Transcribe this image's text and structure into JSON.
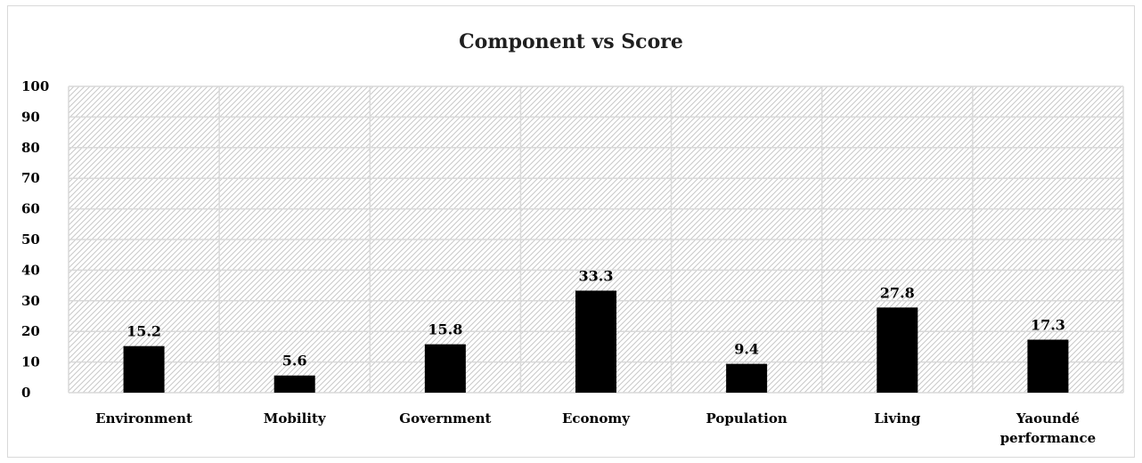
{
  "chart_data": {
    "type": "bar",
    "title": "Component vs Score",
    "categories": [
      "Environment",
      "Mobility",
      "Government",
      "Economy",
      "Population",
      "Living",
      "Yaoundé performance"
    ],
    "values": [
      15.2,
      5.6,
      15.8,
      33.3,
      9.4,
      27.8,
      17.3
    ],
    "data_labels": [
      "15.2",
      "5.6",
      "15.8",
      "33.3",
      "9.4",
      "27.8",
      "17.3"
    ],
    "ylim": [
      0,
      100
    ],
    "yticks": [
      0,
      10,
      20,
      30,
      40,
      50,
      60,
      70,
      80,
      90,
      100
    ],
    "xlabel": "",
    "ylabel": "",
    "grid": true,
    "legend": "none",
    "colors": {
      "bar": "#000000",
      "grid": "#d9d9d9",
      "hatch": "#c8c8c8"
    }
  }
}
